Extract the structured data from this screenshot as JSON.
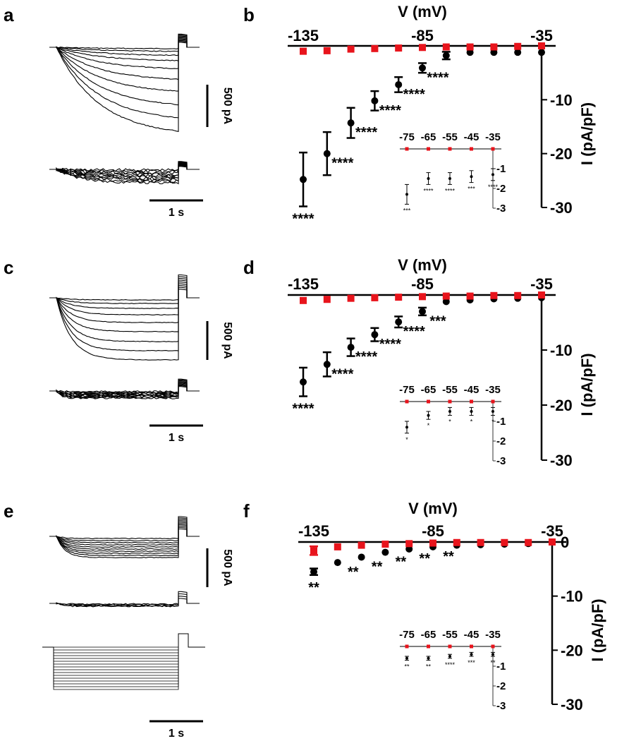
{
  "figure": {
    "panel_letters": [
      "a",
      "b",
      "c",
      "d",
      "e",
      "f"
    ],
    "scale_bars": {
      "current_label": "500 pA",
      "time_label": "1 s"
    }
  },
  "chart_data": [
    {
      "panel": "b",
      "type": "scatter",
      "xlabel": "V (mV)",
      "ylabel": "I (pA/pF)",
      "x_ticks": [
        "-135",
        "-85",
        "-35"
      ],
      "y_ticks": [
        "-10",
        "-20",
        "-30"
      ],
      "xlim": [
        -135,
        -35
      ],
      "ylim": [
        -30,
        0
      ],
      "x": [
        -135,
        -125,
        -115,
        -105,
        -95,
        -85,
        -75,
        -65,
        -55,
        -45,
        -35
      ],
      "series": [
        {
          "color": "#000000",
          "marker": "circle",
          "values": [
            -24.8,
            -20,
            -14.3,
            -10.2,
            -7.2,
            -4.1,
            -1.8,
            -1.2,
            -1.2,
            -1.2,
            -1.2
          ],
          "errors": [
            5,
            4,
            2.8,
            1.8,
            1.4,
            0.9,
            0.7,
            0,
            0,
            0,
            0
          ],
          "stars": [
            "****",
            "****",
            "****",
            "****",
            "****",
            "****",
            "",
            "",
            "",
            "",
            ""
          ]
        },
        {
          "color": "#e8141c",
          "marker": "square",
          "values": [
            -1,
            -0.9,
            -0.6,
            -0.5,
            -0.4,
            -0.3,
            -0.2,
            -0.2,
            -0.2,
            -0.1,
            0
          ],
          "errors": [
            0,
            0,
            0,
            0,
            0,
            0,
            0,
            0,
            0,
            0,
            0
          ]
        }
      ],
      "inset": {
        "x_ticks": [
          "-75",
          "-65",
          "-55",
          "-45",
          "-35"
        ],
        "y_ticks": [
          "-1",
          "-2",
          "-3"
        ],
        "x": [
          -75,
          -65,
          -55,
          -45,
          -35
        ],
        "ylim": [
          -3,
          0
        ],
        "series": [
          {
            "color": "#000000",
            "values": [
              -2.3,
              -1.5,
              -1.5,
              -1.4,
              -1.3
            ],
            "errors": [
              0.5,
              0.3,
              0.3,
              0.3,
              0.3
            ],
            "stars": [
              "***",
              "****",
              "****",
              "***",
              "****"
            ]
          },
          {
            "color": "#e8141c",
            "values": [
              0,
              0,
              0,
              0,
              0
            ]
          }
        ]
      }
    },
    {
      "panel": "d",
      "type": "scatter",
      "xlabel": "V (mV)",
      "ylabel": "I (pA/pF)",
      "x_ticks": [
        "-135",
        "-85",
        "-35"
      ],
      "y_ticks": [
        "-10",
        "-20",
        "-30"
      ],
      "xlim": [
        -135,
        -35
      ],
      "ylim": [
        -30,
        0
      ],
      "x": [
        -135,
        -125,
        -115,
        -105,
        -95,
        -85,
        -75,
        -65,
        -55,
        -45,
        -35
      ],
      "series": [
        {
          "color": "#000000",
          "marker": "circle",
          "values": [
            -15.8,
            -12.6,
            -9.5,
            -7.2,
            -4.9,
            -3,
            -1.2,
            -0.9,
            -0.7,
            -0.6,
            -0.5
          ],
          "errors": [
            2.6,
            2.2,
            1.6,
            1.2,
            1,
            0.7,
            0,
            0,
            0,
            0,
            0
          ],
          "stars": [
            "****",
            "****",
            "****",
            "****",
            "****",
            "***",
            "",
            "",
            "",
            "",
            ""
          ]
        },
        {
          "color": "#e8141c",
          "marker": "square",
          "values": [
            -1,
            -0.8,
            -0.6,
            -0.5,
            -0.4,
            -0.3,
            -0.2,
            -0.2,
            -0.1,
            -0.1,
            0
          ],
          "errors": [
            0,
            0,
            0,
            0,
            0,
            0,
            0,
            0,
            0,
            0,
            0
          ]
        }
      ],
      "inset": {
        "x_ticks": [
          "-75",
          "-65",
          "-55",
          "-45",
          "-35"
        ],
        "y_ticks": [
          "-1",
          "-2",
          "-3"
        ],
        "x": [
          -75,
          -65,
          -55,
          -45,
          -35
        ],
        "ylim": [
          -3,
          0
        ],
        "series": [
          {
            "color": "#000000",
            "values": [
              -1.3,
              -0.7,
              -0.5,
              -0.5,
              -0.5
            ],
            "errors": [
              0.3,
              0.2,
              0.2,
              0.2,
              0.2
            ],
            "stars": [
              "*",
              "*",
              "*",
              "*",
              "*"
            ]
          },
          {
            "color": "#e8141c",
            "values": [
              0,
              0,
              0,
              0,
              0
            ]
          }
        ]
      }
    },
    {
      "panel": "f",
      "type": "scatter",
      "xlabel": "V (mV)",
      "ylabel": "I (pA/pF)",
      "x_ticks": [
        "-135",
        "-85",
        "-35"
      ],
      "y_ticks": [
        "0",
        "-10",
        "-20",
        "-30"
      ],
      "xlim": [
        -135,
        -35
      ],
      "ylim": [
        -30,
        0
      ],
      "x": [
        -135,
        -125,
        -115,
        -105,
        -95,
        -85,
        -75,
        -65,
        -55,
        -45,
        -35
      ],
      "series": [
        {
          "color": "#000000",
          "marker": "circle",
          "values": [
            -5.5,
            -3.8,
            -2.8,
            -1.9,
            -1.3,
            -0.9,
            -0.6,
            -0.5,
            -0.4,
            -0.3,
            0
          ],
          "errors": [
            0.6,
            0,
            0,
            0,
            0,
            0,
            0,
            0,
            0,
            0,
            0
          ],
          "stars": [
            "**",
            "**",
            "**",
            "**",
            "**",
            "**",
            "",
            "",
            "",
            "",
            ""
          ]
        },
        {
          "color": "#e8141c",
          "marker": "square",
          "values": [
            -1.6,
            -0.9,
            -0.6,
            -0.4,
            -0.3,
            -0.2,
            -0.1,
            -0.1,
            -0.1,
            -0.1,
            0
          ],
          "errors": [
            0.8,
            0,
            0,
            0,
            0,
            0,
            0,
            0,
            0,
            0,
            0
          ]
        }
      ],
      "inset": {
        "x_ticks": [
          "-75",
          "-65",
          "-55",
          "-45",
          "-35"
        ],
        "y_ticks": [
          "-1",
          "-2",
          "-3"
        ],
        "x": [
          -75,
          -65,
          -55,
          -45,
          -35
        ],
        "ylim": [
          -3,
          0
        ],
        "series": [
          {
            "color": "#000000",
            "values": [
              -0.6,
              -0.6,
              -0.5,
              -0.4,
              -0.4
            ],
            "errors": [
              0.1,
              0.1,
              0.1,
              0.1,
              0.1
            ],
            "stars": [
              "**",
              "**",
              "****",
              "***",
              "**"
            ]
          },
          {
            "color": "#e8141c",
            "values": [
              0,
              0,
              0,
              0,
              0
            ]
          }
        ]
      }
    }
  ]
}
